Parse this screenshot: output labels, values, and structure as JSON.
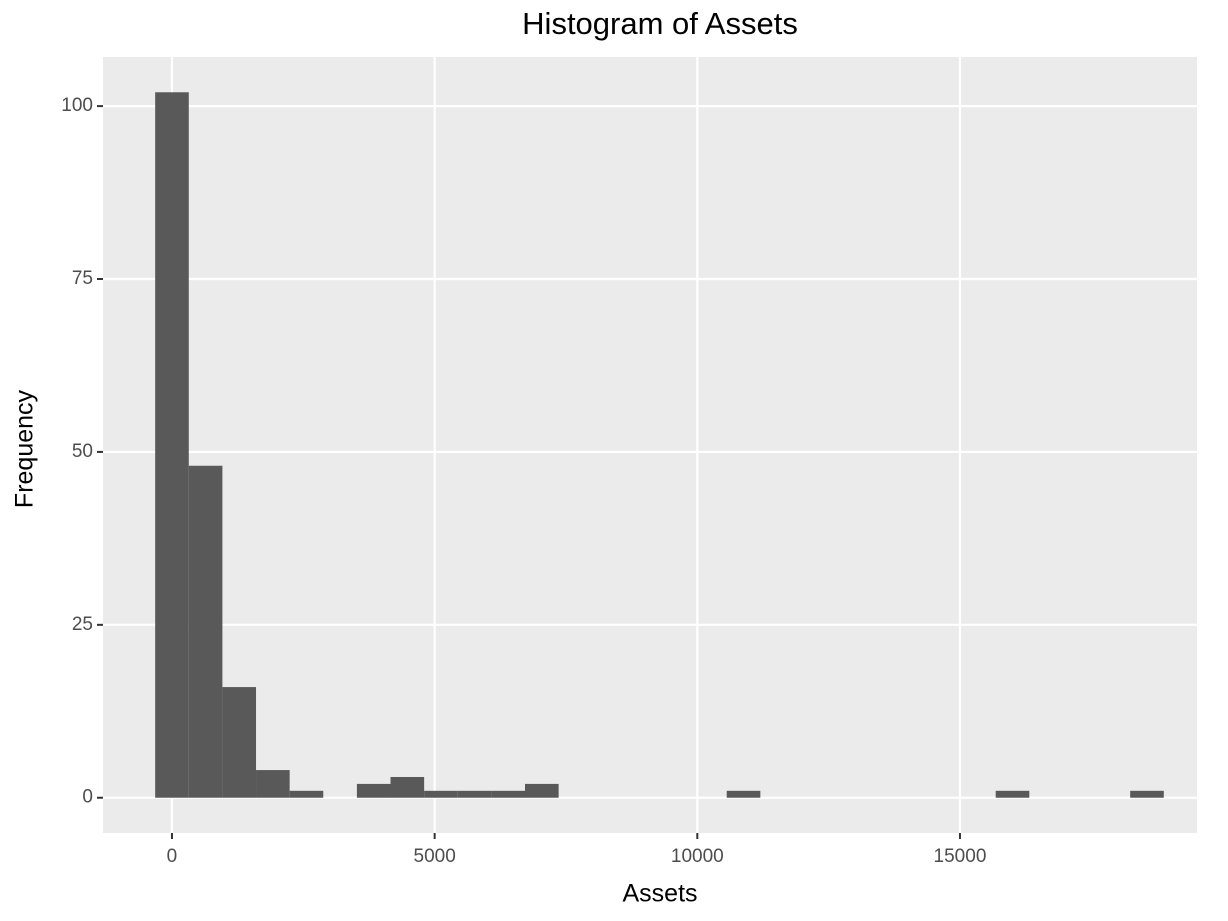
{
  "chart_data": {
    "type": "histogram",
    "title": "Histogram of Assets",
    "x_label": "Assets",
    "y_label": "Frequency",
    "bins": [
      -320,
      320,
      960,
      1600,
      2240,
      2880,
      3520,
      4160,
      4800,
      5440,
      6080,
      6720,
      7360,
      8000,
      8640,
      9280,
      9920,
      10560,
      11200,
      11840,
      12480,
      13120,
      13760,
      14400,
      15040,
      15680,
      16320,
      16960,
      17600,
      18240,
      18880
    ],
    "values": [
      102,
      48,
      16,
      4,
      1,
      0,
      2,
      3,
      1,
      1,
      1,
      2,
      0,
      0,
      0,
      0,
      0,
      1,
      0,
      0,
      0,
      0,
      0,
      0,
      0,
      1,
      0,
      0,
      0,
      1
    ],
    "color": "#595959",
    "xlim": [
      -1313,
      19512
    ],
    "xticks": [
      0,
      5000,
      10000,
      15000
    ],
    "ylim": [
      -5.1,
      107.1
    ],
    "yticks": [
      0,
      25,
      50,
      75,
      100
    ],
    "grid": true
  }
}
